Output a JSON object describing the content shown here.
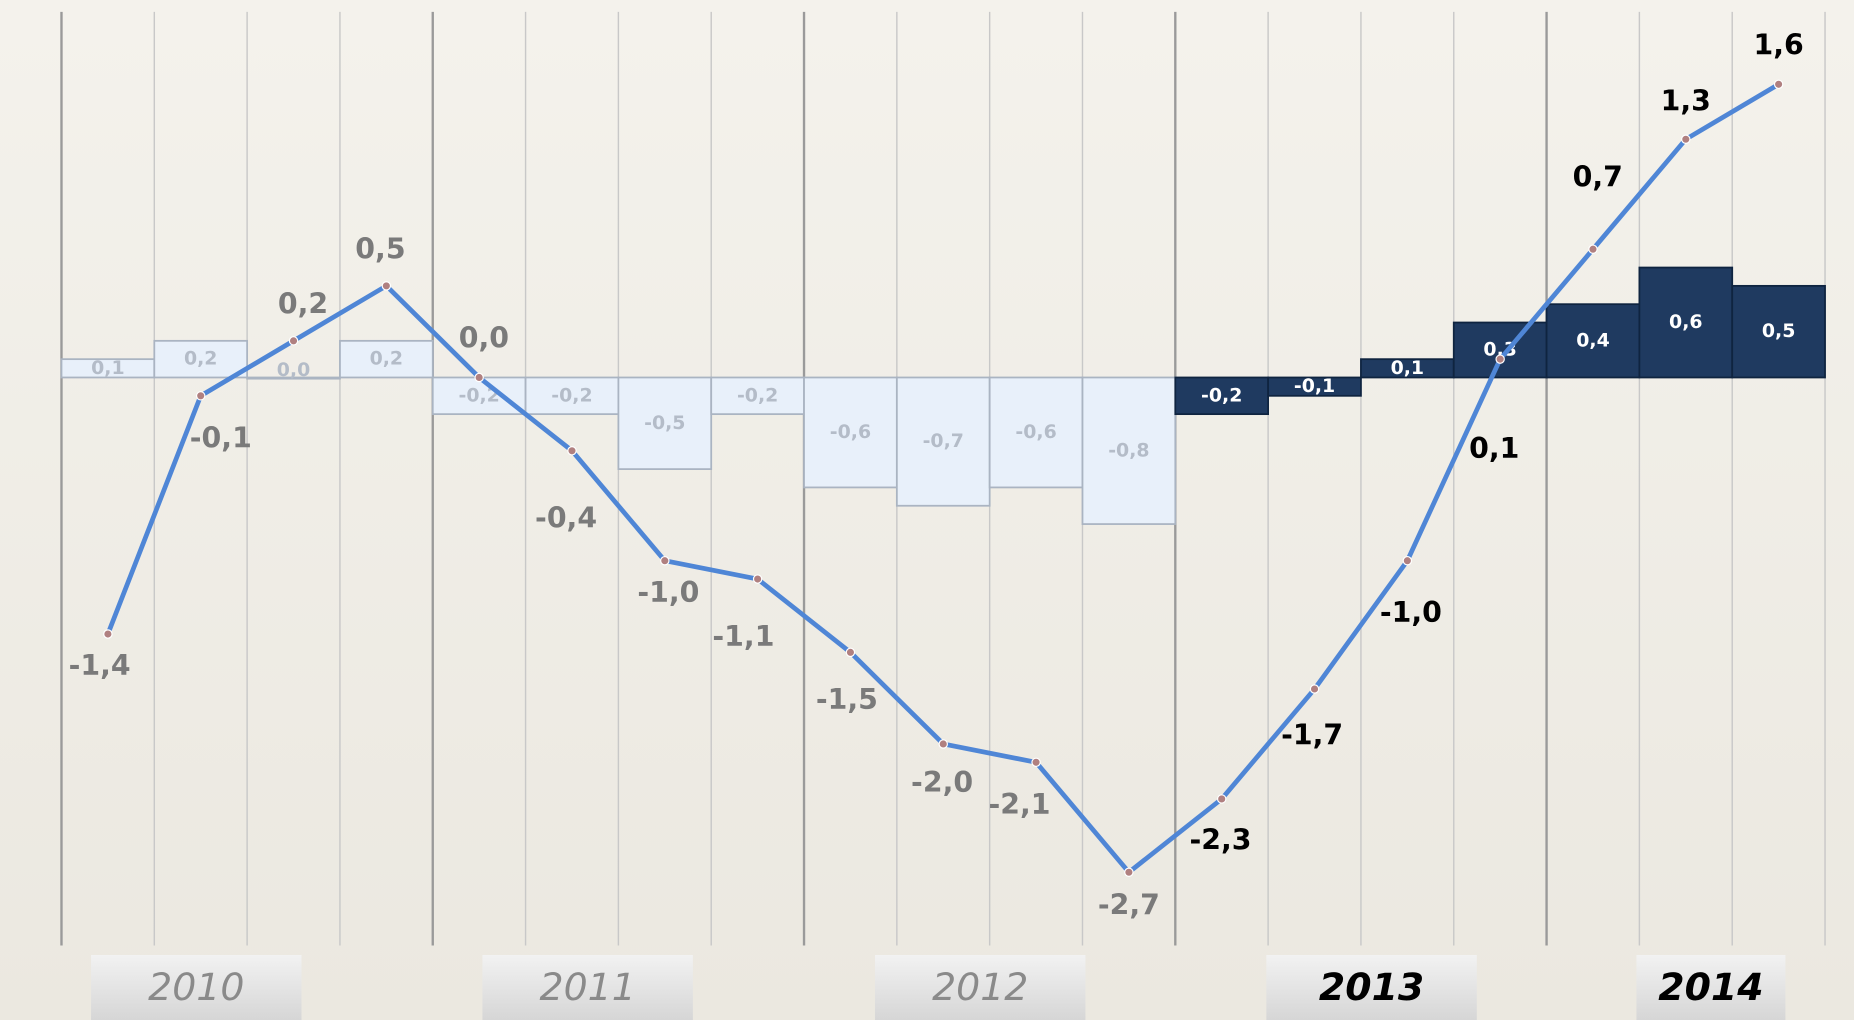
{
  "chart_data": {
    "type": "bar-line",
    "years": [
      "2010",
      "2011",
      "2012",
      "2013",
      "2014"
    ],
    "years_bold": [
      false,
      false,
      false,
      true,
      true
    ],
    "ylim": [
      -3.1,
      2.06
    ],
    "series": [
      {
        "type": "bar",
        "values": [
          0.1,
          0.2,
          0.0,
          0.2,
          -0.2,
          -0.2,
          -0.5,
          -0.2,
          -0.6,
          -0.7,
          -0.6,
          -0.8,
          -0.2,
          -0.1,
          0.1,
          0.3,
          0.4,
          0.6,
          0.5
        ],
        "value_labels": [
          "0,1",
          "0,2",
          "0,0",
          "0,2",
          "-0,2",
          "-0,2",
          "-0,5",
          "-0,2",
          "-0,6",
          "-0,7",
          "-0,6",
          "-0,8",
          "-0,2",
          "-0,1",
          "0,1",
          "0,3",
          "0,4",
          "0,6",
          "0,5"
        ],
        "colors": [
          "#e8f0fa",
          "#e8f0fa",
          "#e8f0fa",
          "#e8f0fa",
          "#e8f0fa",
          "#e8f0fa",
          "#e8f0fa",
          "#e8f0fa",
          "#e8f0fa",
          "#e8f0fa",
          "#e8f0fa",
          "#e8f0fa",
          "#1f3a60",
          "#1f3a60",
          "#1f3a60",
          "#1f3a60",
          "#1f3a60",
          "#1f3a60",
          "#1f3a60"
        ]
      },
      {
        "type": "line",
        "color": "#4f86d6",
        "values": [
          -1.4,
          -0.1,
          0.2,
          0.5,
          0.0,
          -0.4,
          -1.0,
          -1.1,
          -1.5,
          -2.0,
          -2.1,
          -2.7,
          -2.3,
          -1.7,
          -1.0,
          0.1,
          0.7,
          1.3,
          1.6
        ],
        "value_labels": [
          "-1,4",
          "-0,1",
          "0,2",
          "0,5",
          "0,0",
          "-0,4",
          "-1,0",
          "-1,1",
          "-1,5",
          "-2,0",
          "-2,1",
          "-2,7",
          "-2,3",
          "-1,7",
          "-1,0",
          "0,1",
          "0,7",
          "1,3",
          "1,6"
        ]
      }
    ]
  }
}
